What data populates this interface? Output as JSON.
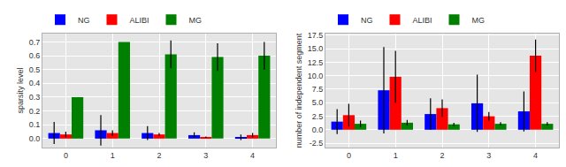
{
  "chart_data": [
    {
      "type": "bar",
      "y_label": "sparsity level",
      "categories": [
        "0",
        "1",
        "2",
        "3",
        "4"
      ],
      "series": [
        {
          "name": "NG",
          "color": "#0000ff",
          "values": [
            0.04,
            0.06,
            0.04,
            0.025,
            0.01
          ],
          "errors": [
            0.08,
            0.11,
            0.05,
            0.02,
            0.02
          ]
        },
        {
          "name": "ALIBI",
          "color": "#ff0000",
          "values": [
            0.03,
            0.04,
            0.03,
            0.01,
            0.025
          ],
          "errors": [
            0.02,
            0.02,
            0.01,
            0.005,
            0.015
          ]
        },
        {
          "name": "MG",
          "color": "#008000",
          "values": [
            0.3,
            0.7,
            0.61,
            0.59,
            0.6
          ],
          "errors": [
            0,
            0,
            0.1,
            0.1,
            0.1
          ]
        }
      ],
      "ylim": [
        -0.065,
        0.76
      ],
      "yticks": [
        {
          "value": 0,
          "label": "0.0"
        },
        0.1,
        0.2,
        0.3,
        0.4,
        0.5,
        0.6,
        0.7
      ],
      "grid": true,
      "legend": "top"
    },
    {
      "type": "bar",
      "y_label": "number of independent segment",
      "categories": [
        "0",
        "1",
        "2",
        "3",
        "4"
      ],
      "series": [
        {
          "name": "NG",
          "color": "#0000ff",
          "values": [
            1.5,
            7.3,
            2.9,
            4.9,
            3.4
          ],
          "errors": [
            2.3,
            8,
            2.9,
            5.3,
            3.7
          ]
        },
        {
          "name": "ALIBI",
          "color": "#ff0000",
          "values": [
            2.7,
            9.8,
            4.0,
            2.5,
            13.7
          ],
          "errors": [
            2.1,
            4.8,
            1.6,
            0.8,
            3.0
          ]
        },
        {
          "name": "MG",
          "color": "#008000",
          "values": [
            1.1,
            1.3,
            1.0,
            1.1,
            1.1
          ],
          "errors": [
            0.6,
            0.5,
            0.3,
            0.3,
            0.3
          ]
        }
      ],
      "ylim": [
        -3.3,
        17.8
      ],
      "yticks": [
        -2.5,
        {
          "value": 0,
          "label": "0.0"
        },
        2.5,
        {
          "value": 5,
          "label": "5.0"
        },
        7.5,
        {
          "value": 10,
          "label": "10.0"
        },
        12.5,
        {
          "value": 15,
          "label": "15.0"
        },
        17.5
      ],
      "grid": true,
      "legend": "top"
    }
  ]
}
